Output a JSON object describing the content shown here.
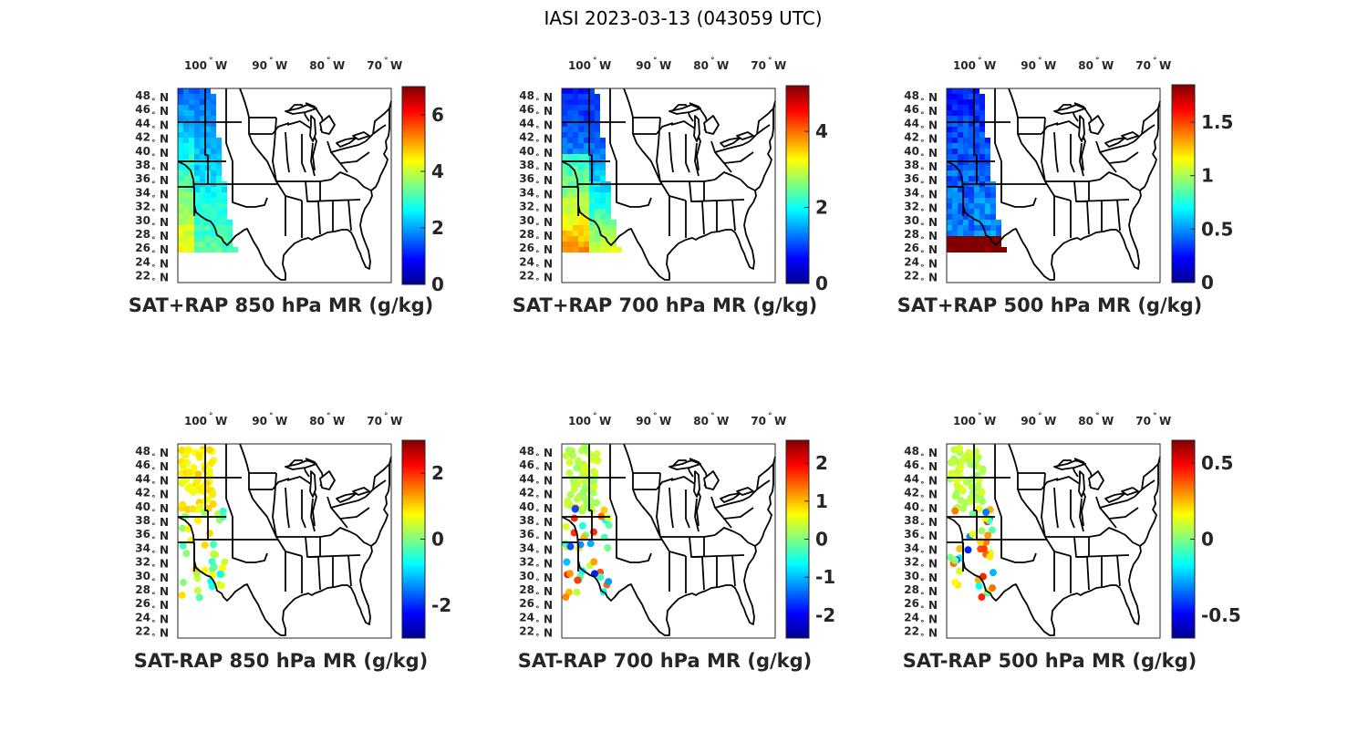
{
  "figure_title": "IASI 2023-03-13 (043059 UTC)",
  "lon_ticks": [
    {
      "value": "100",
      "dir": "W"
    },
    {
      "value": "90",
      "dir": "W"
    },
    {
      "value": "80",
      "dir": "W"
    },
    {
      "value": "70",
      "dir": "W"
    }
  ],
  "lat_ticks": [
    {
      "value": "48",
      "dir": "N"
    },
    {
      "value": "46",
      "dir": "N"
    },
    {
      "value": "44",
      "dir": "N"
    },
    {
      "value": "42",
      "dir": "N"
    },
    {
      "value": "40",
      "dir": "N"
    },
    {
      "value": "38",
      "dir": "N"
    },
    {
      "value": "36",
      "dir": "N"
    },
    {
      "value": "34",
      "dir": "N"
    },
    {
      "value": "32",
      "dir": "N"
    },
    {
      "value": "30",
      "dir": "N"
    },
    {
      "value": "28",
      "dir": "N"
    },
    {
      "value": "26",
      "dir": "N"
    },
    {
      "value": "24",
      "dir": "N"
    },
    {
      "value": "22",
      "dir": "N"
    }
  ],
  "degree_symbol": "°",
  "colormap": "jet",
  "panels": [
    {
      "title": "SAT+RAP 850 hPa MR (g/kg)",
      "kind": "swath",
      "clim": [
        0,
        7
      ],
      "cbar_ticks": [
        {
          "v": 0,
          "label": "0"
        },
        {
          "v": 2,
          "label": "2"
        },
        {
          "v": 4,
          "label": "4"
        },
        {
          "v": 6,
          "label": "6"
        }
      ]
    },
    {
      "title": "SAT+RAP 700 hPa MR (g/kg)",
      "kind": "swath",
      "clim": [
        0,
        5.2
      ],
      "cbar_ticks": [
        {
          "v": 0,
          "label": "0"
        },
        {
          "v": 2,
          "label": "2"
        },
        {
          "v": 4,
          "label": "4"
        }
      ]
    },
    {
      "title": "SAT+RAP 500 hPa MR (g/kg)",
      "kind": "swath",
      "clim": [
        0,
        1.85
      ],
      "cbar_ticks": [
        {
          "v": 0,
          "label": "0"
        },
        {
          "v": 0.5,
          "label": "0.5"
        },
        {
          "v": 1,
          "label": "1"
        },
        {
          "v": 1.5,
          "label": "1.5"
        }
      ]
    },
    {
      "title": "SAT-RAP 850 hPa MR (g/kg)",
      "kind": "diff",
      "clim": [
        -3,
        3
      ],
      "cbar_ticks": [
        {
          "v": -2,
          "label": "-2"
        },
        {
          "v": 0,
          "label": "0"
        },
        {
          "v": 2,
          "label": "2"
        }
      ]
    },
    {
      "title": "SAT-RAP 700 hPa MR (g/kg)",
      "kind": "diff",
      "clim": [
        -2.6,
        2.6
      ],
      "cbar_ticks": [
        {
          "v": -2,
          "label": "-2"
        },
        {
          "v": -1,
          "label": "-1"
        },
        {
          "v": 0,
          "label": "0"
        },
        {
          "v": 1,
          "label": "1"
        },
        {
          "v": 2,
          "label": "2"
        }
      ]
    },
    {
      "title": "SAT-RAP 500 hPa MR (g/kg)",
      "kind": "diff",
      "clim": [
        -0.65,
        0.65
      ],
      "cbar_ticks": [
        {
          "v": -0.5,
          "label": "-0.5"
        },
        {
          "v": 0,
          "label": "0"
        },
        {
          "v": 0.5,
          "label": "0.5"
        }
      ]
    }
  ]
}
